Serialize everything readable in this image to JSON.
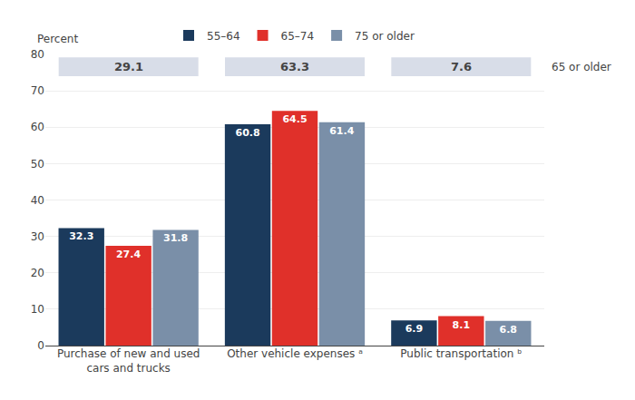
{
  "chart_data": {
    "type": "bar",
    "ylabel": "Percent",
    "categories": [
      "Purchase of new and used\ncars and trucks",
      "Other vehicle expenses ᵃ",
      "Public transportation ᵇ"
    ],
    "series": [
      {
        "name": "55–64",
        "color": "#1b3a5c",
        "values": [
          32.3,
          60.8,
          6.9
        ]
      },
      {
        "name": "65–74",
        "color": "#e0302a",
        "values": [
          27.4,
          64.5,
          8.1
        ]
      },
      {
        "name": "75 or older",
        "color": "#7a8fa8",
        "values": [
          31.8,
          61.4,
          6.8
        ]
      }
    ],
    "summary": {
      "name": "65 or older",
      "color": "#d8dde8",
      "values": [
        29.1,
        63.3,
        7.6
      ]
    },
    "ylim": [
      0,
      80
    ],
    "yticks": [
      0,
      10,
      20,
      30,
      40,
      50,
      60,
      70,
      80
    ],
    "grid": true,
    "legend": "top",
    "data_labels": true
  }
}
